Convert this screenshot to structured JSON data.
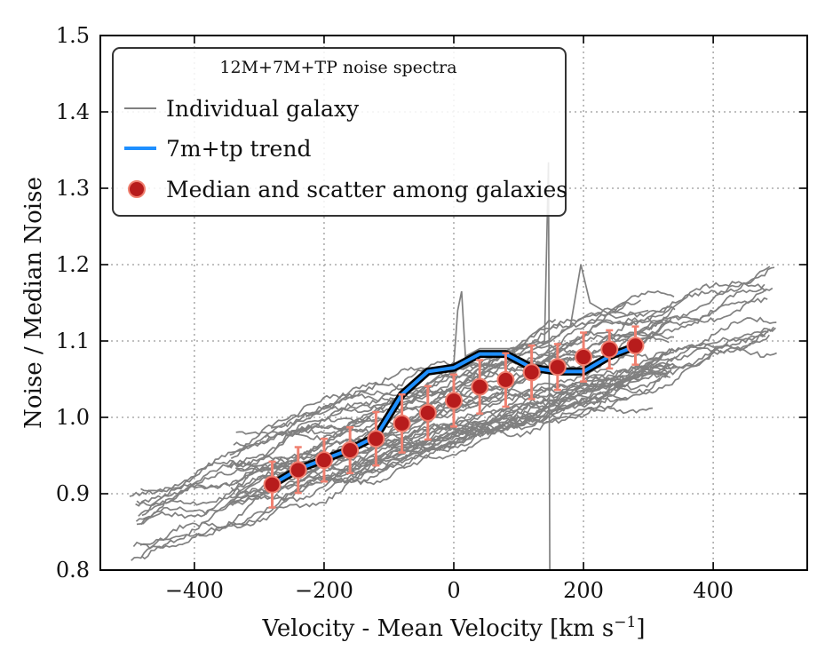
{
  "chart_data": {
    "type": "line",
    "xlabel": "Velocity - Mean Velocity [km s",
    "xlabel_sup": "−1",
    "xlabel_end": "]",
    "ylabel": "Noise / Median Noise",
    "xlim": [
      -545,
      545
    ],
    "ylim": [
      0.8,
      1.5
    ],
    "x_ticks": [
      -400,
      -200,
      0,
      200,
      400
    ],
    "x_tick_labels": [
      "−400",
      "−200",
      "0",
      "200",
      "400"
    ],
    "y_ticks": [
      0.8,
      0.9,
      1.0,
      1.1,
      1.2,
      1.3,
      1.4,
      1.5
    ],
    "y_tick_labels": [
      "0.8",
      "0.9",
      "1.0",
      "1.1",
      "1.2",
      "1.3",
      "1.4",
      "1.5"
    ],
    "grid": true,
    "legend": {
      "position": "top-left",
      "title": "12M+7M+TP noise spectra",
      "entries": [
        {
          "label": "Individual galaxy",
          "kind": "line",
          "color": "#808080"
        },
        {
          "label": "7m+tp trend",
          "kind": "line",
          "color": "#1e8fff"
        },
        {
          "label": "Median and scatter among galaxies",
          "kind": "marker",
          "color": "#b71c1c",
          "edge": "#f08070"
        }
      ]
    },
    "series": [
      {
        "name": "7m+tp trend",
        "color": "#1e8fff",
        "x": [
          -280,
          -240,
          -200,
          -160,
          -120,
          -80,
          -40,
          0,
          40,
          80,
          120,
          160,
          200,
          240,
          280
        ],
        "y": [
          0.912,
          0.932,
          0.945,
          0.958,
          0.975,
          1.03,
          1.06,
          1.065,
          1.083,
          1.083,
          1.065,
          1.06,
          1.06,
          1.08,
          1.093
        ]
      },
      {
        "name": "Median and scatter among galaxies",
        "color": "#b71c1c",
        "x": [
          -280,
          -240,
          -200,
          -160,
          -120,
          -80,
          -40,
          0,
          40,
          80,
          120,
          160,
          200,
          240,
          280
        ],
        "y": [
          0.912,
          0.931,
          0.944,
          0.957,
          0.972,
          0.992,
          1.006,
          1.022,
          1.04,
          1.049,
          1.059,
          1.066,
          1.079,
          1.089,
          1.094
        ],
        "err": [
          0.03,
          0.03,
          0.028,
          0.03,
          0.035,
          0.038,
          0.035,
          0.034,
          0.035,
          0.035,
          0.035,
          0.03,
          0.032,
          0.025,
          0.025
        ]
      }
    ],
    "galaxy_lines": {
      "name": "Individual galaxy",
      "color": "#808080",
      "count": 40,
      "x_range": [
        -500,
        500
      ]
    }
  }
}
